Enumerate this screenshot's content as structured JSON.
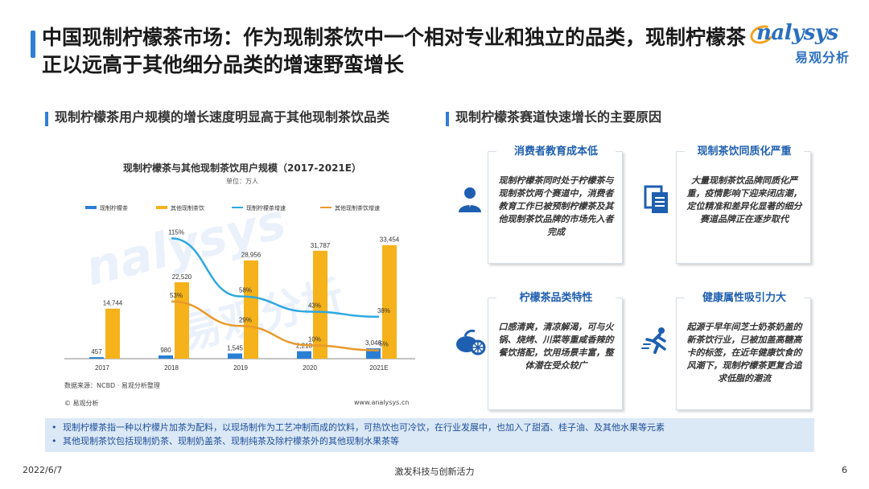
{
  "header": {
    "title": "中国现制柠檬茶市场：作为现制茶饮中一个相对专业和独立的品类，现制柠檬茶正以远高于其他细分品类的增速野蛮增长"
  },
  "logo": {
    "brand": "nalysys",
    "brand_cn": "易观分析"
  },
  "left_section": {
    "subtitle": "现制柠檬茶用户规模的增长速度明显高于其他现制茶饮品类"
  },
  "chart_data": {
    "type": "bar",
    "title": "现制柠檬茶与其他现制茶饮用户规模（2017-2021E）",
    "unit": "单位：万人",
    "categories": [
      "2017",
      "2018",
      "2019",
      "2020",
      "2021E"
    ],
    "series": [
      {
        "name": "现制柠檬茶",
        "kind": "bar",
        "color": "#2a7fd4",
        "values": [
          457,
          980,
          1545,
          2213,
          3046
        ],
        "labels": [
          "457",
          "980",
          "1,545",
          "2,213",
          "3,046"
        ]
      },
      {
        "name": "其他现制茶饮",
        "kind": "bar",
        "color": "#f5b21b",
        "values": [
          14744,
          22520,
          28956,
          31787,
          33454
        ],
        "labels": [
          "14,744",
          "22,520",
          "28,956",
          "31,787",
          "33,454"
        ]
      },
      {
        "name": "现制柠檬茶增速",
        "kind": "line",
        "color": "#2fa8e0",
        "values": [
          null,
          115,
          58,
          43,
          38
        ],
        "labels": [
          "",
          "115%",
          "58%",
          "43%",
          "38%"
        ]
      },
      {
        "name": "其他现制茶饮增速",
        "kind": "line",
        "color": "#e89a2c",
        "values": [
          null,
          53,
          29,
          10,
          5
        ],
        "labels": [
          "",
          "53%",
          "29%",
          "10%",
          "5%"
        ]
      }
    ],
    "grid": false,
    "legend": "top"
  },
  "chart_footer": {
    "source": "数据来源：NCBD · 易观分析整理",
    "copyright": "© 易观分析",
    "website": "www.analysys.cn"
  },
  "right_section": {
    "subtitle": "现制柠檬茶赛道快速增长的主要原因",
    "cards": [
      {
        "title": "消费者教育成本低",
        "body": "现制柠檬茶同时处于柠檬茶与现制茶饮两个赛道中，消费者教育工作已被预制柠檬茶及其他现制茶饮品牌的市场先入者完成",
        "icon": "user-icon"
      },
      {
        "title": "现制茶饮同质化严重",
        "body": "大量现制茶饮品牌同质化严重，疫情影响下迎来闭店潮，定位精准和差异化显著的细分赛道品牌正在逐步取代",
        "icon": "documents-icon"
      },
      {
        "title": "柠檬茶品类特性",
        "body": "口感清爽，清凉解渴，可与火锅、烧烤、川菜等重咸香辣的餐饮搭配，饮用场景丰富，整体潜在受众较广",
        "icon": "lemon-icon"
      },
      {
        "title": "健康属性吸引力大",
        "body": "起源于早年间芝士奶茶奶盖的新茶饮行业，已被加盖高糖高卡的标签，在近年健康饮食的风潮下，现制柠檬茶更复合追求低脂的潮流",
        "icon": "runner-icon"
      }
    ]
  },
  "notes": [
    "现制柠檬茶指一种以柠檬片加茶为配料，以现场制作为工艺冲制而成的饮料，可热饮也可冷饮，在行业发展中，也加入了甜酒、桂子油、及其他水果等元素",
    "其他现制茶饮包括现制奶茶、现制奶盖茶、现制纯茶及除柠檬茶外的其他现制水果茶等"
  ],
  "footer": {
    "date": "2022/6/7",
    "tagline": "激发科技与创新活力",
    "page": "6"
  },
  "colors": {
    "accent": "#2f7fd7",
    "card_title": "#1f5fb0",
    "note_bg": "#dbe8f6"
  }
}
